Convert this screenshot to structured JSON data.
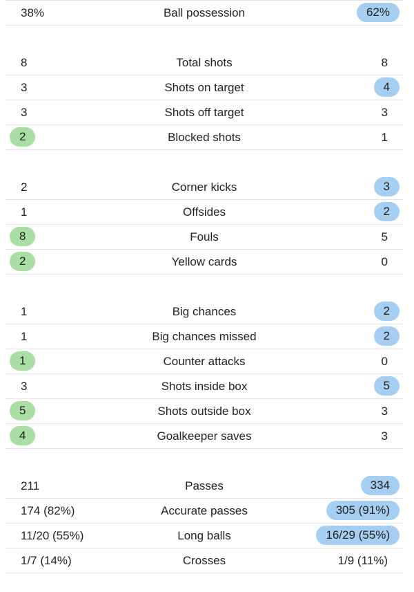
{
  "colors": {
    "home_highlight": "#a9dea4",
    "away_highlight": "#a6cdf2",
    "divider": "#e3e3e3"
  },
  "groups": [
    {
      "rows": [
        {
          "home": "38%",
          "label": "Ball possession",
          "away": "62%",
          "highlight": "away"
        }
      ]
    },
    {
      "rows": [
        {
          "home": "8",
          "label": "Total shots",
          "away": "8",
          "highlight": "none"
        },
        {
          "home": "3",
          "label": "Shots on target",
          "away": "4",
          "highlight": "away"
        },
        {
          "home": "3",
          "label": "Shots off target",
          "away": "3",
          "highlight": "none"
        },
        {
          "home": "2",
          "label": "Blocked shots",
          "away": "1",
          "highlight": "home"
        }
      ]
    },
    {
      "rows": [
        {
          "home": "2",
          "label": "Corner kicks",
          "away": "3",
          "highlight": "away"
        },
        {
          "home": "1",
          "label": "Offsides",
          "away": "2",
          "highlight": "away"
        },
        {
          "home": "8",
          "label": "Fouls",
          "away": "5",
          "highlight": "home"
        },
        {
          "home": "2",
          "label": "Yellow cards",
          "away": "0",
          "highlight": "home"
        }
      ]
    },
    {
      "rows": [
        {
          "home": "1",
          "label": "Big chances",
          "away": "2",
          "highlight": "away"
        },
        {
          "home": "1",
          "label": "Big chances missed",
          "away": "2",
          "highlight": "away"
        },
        {
          "home": "1",
          "label": "Counter attacks",
          "away": "0",
          "highlight": "home"
        },
        {
          "home": "3",
          "label": "Shots inside box",
          "away": "5",
          "highlight": "away"
        },
        {
          "home": "5",
          "label": "Shots outside box",
          "away": "3",
          "highlight": "home"
        },
        {
          "home": "4",
          "label": "Goalkeeper saves",
          "away": "3",
          "highlight": "home"
        }
      ]
    },
    {
      "rows": [
        {
          "home": "211",
          "label": "Passes",
          "away": "334",
          "highlight": "away"
        },
        {
          "home": "174 (82%)",
          "label": "Accurate passes",
          "away": "305 (91%)",
          "highlight": "away"
        },
        {
          "home": "11/20 (55%)",
          "label": "Long balls",
          "away": "16/29 (55%)",
          "highlight": "away"
        },
        {
          "home": "1/7 (14%)",
          "label": "Crosses",
          "away": "1/9 (11%)",
          "highlight": "none"
        }
      ]
    }
  ]
}
